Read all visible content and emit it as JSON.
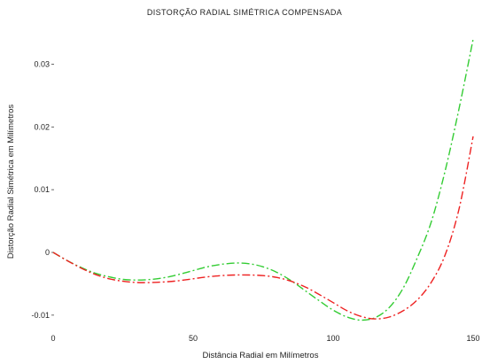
{
  "chart_data": {
    "type": "line",
    "title": "DISTORÇÃO RADIAL SIMÉTRICA COMPENSADA",
    "xlabel": "Distância Radial em Milímetros",
    "ylabel": "Distorção Radial Simétrica em Milímetros",
    "xlim": [
      0,
      150
    ],
    "ylim": [
      -0.012,
      0.036
    ],
    "x_ticks": [
      0,
      50,
      100,
      150
    ],
    "y_ticks": [
      -0.01,
      0,
      0.01,
      0.02,
      0.03
    ],
    "x_tick_labels": [
      "0",
      "50",
      "100",
      "150"
    ],
    "y_tick_labels": [
      "-0.01",
      "0",
      "0.01",
      "0.02",
      "0.03"
    ],
    "grid": false,
    "legend": false,
    "series": [
      {
        "color": "#33cc33",
        "style": "dash-dot",
        "x": [
          0,
          5,
          10,
          15,
          20,
          25,
          30,
          35,
          40,
          45,
          50,
          55,
          60,
          65,
          70,
          75,
          80,
          85,
          90,
          95,
          100,
          105,
          110,
          115,
          120,
          125,
          130,
          135,
          140,
          145,
          150
        ],
        "y": [
          0.0,
          -0.0013,
          -0.0024,
          -0.0033,
          -0.0039,
          -0.0043,
          -0.0044,
          -0.0043,
          -0.004,
          -0.0035,
          -0.0029,
          -0.0023,
          -0.0019,
          -0.0017,
          -0.0018,
          -0.0023,
          -0.0032,
          -0.0045,
          -0.0061,
          -0.0077,
          -0.0092,
          -0.0103,
          -0.0108,
          -0.0104,
          -0.0088,
          -0.0057,
          -0.0009,
          0.0048,
          0.013,
          0.023,
          0.034
        ]
      },
      {
        "color": "#ee2222",
        "style": "dash-dot",
        "x": [
          0,
          5,
          10,
          15,
          20,
          25,
          30,
          35,
          40,
          45,
          50,
          55,
          60,
          65,
          70,
          75,
          80,
          85,
          90,
          95,
          100,
          105,
          110,
          115,
          120,
          125,
          130,
          135,
          140,
          145,
          150
        ],
        "y": [
          0.0,
          -0.0013,
          -0.0025,
          -0.0035,
          -0.0042,
          -0.0046,
          -0.0048,
          -0.0048,
          -0.0047,
          -0.0045,
          -0.0042,
          -0.0039,
          -0.0037,
          -0.0036,
          -0.0036,
          -0.0037,
          -0.004,
          -0.0046,
          -0.0055,
          -0.0067,
          -0.008,
          -0.0093,
          -0.0102,
          -0.0106,
          -0.0103,
          -0.0093,
          -0.0076,
          -0.0048,
          -0.0004,
          0.007,
          0.0185
        ]
      }
    ]
  }
}
